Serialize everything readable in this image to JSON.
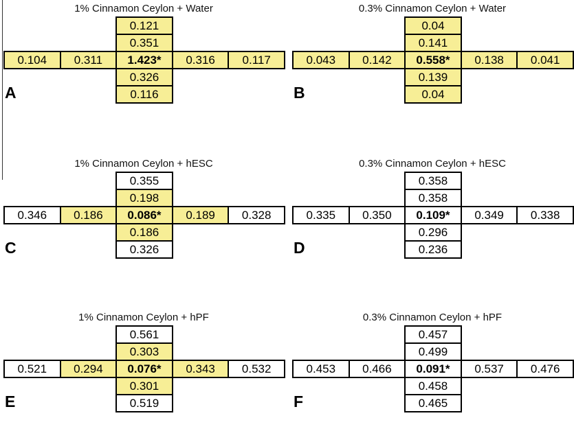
{
  "panels": [
    {
      "title": "1% Cinnamon Ceylon + Water",
      "label": "A",
      "column_top": [
        "0.121",
        "0.351"
      ],
      "row": [
        "0.104",
        "0.311",
        "1.423*",
        "0.316",
        "0.117"
      ],
      "column_bottom": [
        "0.326",
        "0.116"
      ],
      "highlight": {
        "column_top": [
          true,
          true
        ],
        "row": [
          true,
          true,
          true,
          true,
          true
        ],
        "column_bottom": [
          true,
          true
        ]
      }
    },
    {
      "title": "0.3% Cinnamon Ceylon + Water",
      "label": "B",
      "column_top": [
        "0.04",
        "0.141"
      ],
      "row": [
        "0.043",
        "0.142",
        "0.558*",
        "0.138",
        "0.041"
      ],
      "column_bottom": [
        "0.139",
        "0.04"
      ],
      "highlight": {
        "column_top": [
          true,
          true
        ],
        "row": [
          true,
          true,
          true,
          true,
          true
        ],
        "column_bottom": [
          true,
          true
        ]
      }
    },
    {
      "title": "1% Cinnamon Ceylon + hESC",
      "label": "C",
      "column_top": [
        "0.355",
        "0.198"
      ],
      "row": [
        "0.346",
        "0.186",
        "0.086*",
        "0.189",
        "0.328"
      ],
      "column_bottom": [
        "0.186",
        "0.326"
      ],
      "highlight": {
        "column_top": [
          false,
          true
        ],
        "row": [
          false,
          true,
          true,
          true,
          false
        ],
        "column_bottom": [
          true,
          false
        ]
      }
    },
    {
      "title": "0.3% Cinnamon Ceylon + hESC",
      "label": "D",
      "column_top": [
        "0.358",
        "0.358"
      ],
      "row": [
        "0.335",
        "0.350",
        "0.109*",
        "0.349",
        "0.338"
      ],
      "column_bottom": [
        "0.296",
        "0.236"
      ],
      "highlight": {
        "column_top": [
          false,
          false
        ],
        "row": [
          false,
          false,
          false,
          false,
          false
        ],
        "column_bottom": [
          false,
          false
        ]
      }
    },
    {
      "title": "1% Cinnamon Ceylon + hPF",
      "label": "E",
      "column_top": [
        "0.561",
        "0.303"
      ],
      "row": [
        "0.521",
        "0.294",
        "0.076*",
        "0.343",
        "0.532"
      ],
      "column_bottom": [
        "0.301",
        "0.519"
      ],
      "highlight": {
        "column_top": [
          false,
          true
        ],
        "row": [
          false,
          true,
          true,
          true,
          false
        ],
        "column_bottom": [
          true,
          false
        ]
      }
    },
    {
      "title": "0.3% Cinnamon Ceylon + hPF",
      "label": "F",
      "column_top": [
        "0.457",
        "0.499"
      ],
      "row": [
        "0.453",
        "0.466",
        "0.091*",
        "0.537",
        "0.476"
      ],
      "column_bottom": [
        "0.458",
        "0.465"
      ],
      "highlight": {
        "column_top": [
          false,
          false
        ],
        "row": [
          false,
          false,
          false,
          false,
          false
        ],
        "column_bottom": [
          false,
          false
        ]
      }
    }
  ]
}
